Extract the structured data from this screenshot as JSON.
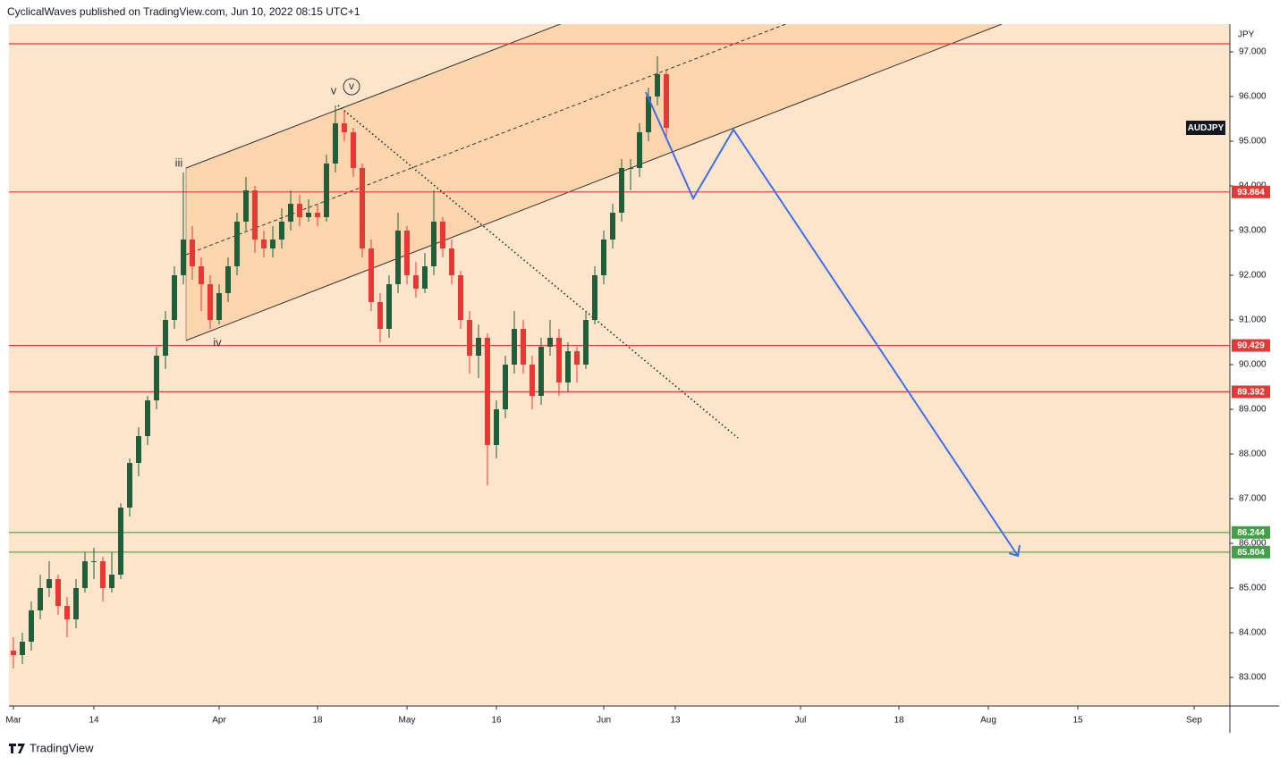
{
  "header": "CyclicalWaves published on TradingView.com, Jun 10, 2022 08:15 UTC+1",
  "footer": "TradingView",
  "chart_data": {
    "type": "candlestick",
    "symbol": "AUDJPY",
    "currency": "JPY",
    "up_color": "#1f5f3a",
    "down_color": "#e53935",
    "candles": [
      [
        83.6,
        83.9,
        83.2,
        83.5
      ],
      [
        83.5,
        84.0,
        83.3,
        83.8
      ],
      [
        83.8,
        84.7,
        83.6,
        84.5
      ],
      [
        84.5,
        85.3,
        84.3,
        85.0
      ],
      [
        85.0,
        85.6,
        84.8,
        85.2
      ],
      [
        85.2,
        85.3,
        84.4,
        84.6
      ],
      [
        84.6,
        84.8,
        83.9,
        84.3
      ],
      [
        84.3,
        85.2,
        84.1,
        85.0
      ],
      [
        85.0,
        85.8,
        84.9,
        85.6
      ],
      [
        85.6,
        85.9,
        85.2,
        85.6
      ],
      [
        85.6,
        85.7,
        84.7,
        85.0
      ],
      [
        85.0,
        85.8,
        84.9,
        85.3
      ],
      [
        85.3,
        86.9,
        85.2,
        86.8
      ],
      [
        86.8,
        87.9,
        86.6,
        87.8
      ],
      [
        87.8,
        88.6,
        87.5,
        88.4
      ],
      [
        88.4,
        89.3,
        88.2,
        89.2
      ],
      [
        89.2,
        90.4,
        89.0,
        90.2
      ],
      [
        90.2,
        91.2,
        89.9,
        91.0
      ],
      [
        91.0,
        92.2,
        90.8,
        92.0
      ],
      [
        92.0,
        94.3,
        91.8,
        92.8
      ],
      [
        92.8,
        93.1,
        91.9,
        92.2
      ],
      [
        92.2,
        92.4,
        91.2,
        91.8
      ],
      [
        91.8,
        92.0,
        90.8,
        91.0
      ],
      [
        91.0,
        91.8,
        90.9,
        91.6
      ],
      [
        91.6,
        92.4,
        91.4,
        92.2
      ],
      [
        92.2,
        93.4,
        92.0,
        93.2
      ],
      [
        93.2,
        94.2,
        93.0,
        93.9
      ],
      [
        93.9,
        94.0,
        92.5,
        92.8
      ],
      [
        92.8,
        93.0,
        92.4,
        92.6
      ],
      [
        92.6,
        93.1,
        92.4,
        92.8
      ],
      [
        92.8,
        93.5,
        92.6,
        93.2
      ],
      [
        93.2,
        93.9,
        93.0,
        93.6
      ],
      [
        93.6,
        93.8,
        93.1,
        93.3
      ],
      [
        93.3,
        93.7,
        93.2,
        93.4
      ],
      [
        93.4,
        93.6,
        93.1,
        93.3
      ],
      [
        93.3,
        94.7,
        93.2,
        94.5
      ],
      [
        94.5,
        95.8,
        94.3,
        95.4
      ],
      [
        95.4,
        95.7,
        95.0,
        95.2
      ],
      [
        95.2,
        95.3,
        94.2,
        94.4
      ],
      [
        94.4,
        94.5,
        92.4,
        92.6
      ],
      [
        92.6,
        92.8,
        91.2,
        91.4
      ],
      [
        91.4,
        91.6,
        90.5,
        90.8
      ],
      [
        90.8,
        92.0,
        90.6,
        91.8
      ],
      [
        91.8,
        93.4,
        91.6,
        93.0
      ],
      [
        93.0,
        93.1,
        91.8,
        92.0
      ],
      [
        92.0,
        92.3,
        91.5,
        91.7
      ],
      [
        91.7,
        92.5,
        91.6,
        92.2
      ],
      [
        92.2,
        93.9,
        92.0,
        93.2
      ],
      [
        93.2,
        93.3,
        92.4,
        92.6
      ],
      [
        92.6,
        92.8,
        91.8,
        92.0
      ],
      [
        92.0,
        92.1,
        90.8,
        91.0
      ],
      [
        91.0,
        91.2,
        89.8,
        90.2
      ],
      [
        90.2,
        90.9,
        89.7,
        90.6
      ],
      [
        90.6,
        90.7,
        87.3,
        88.2
      ],
      [
        88.2,
        89.2,
        87.9,
        89.0
      ],
      [
        89.0,
        90.2,
        88.8,
        90.0
      ],
      [
        90.0,
        91.2,
        89.8,
        90.8
      ],
      [
        90.8,
        91.0,
        89.8,
        90.0
      ],
      [
        90.0,
        90.2,
        89.0,
        89.3
      ],
      [
        89.3,
        90.6,
        89.1,
        90.4
      ],
      [
        90.4,
        91.0,
        90.2,
        90.6
      ],
      [
        90.6,
        90.8,
        89.3,
        89.6
      ],
      [
        89.6,
        90.5,
        89.4,
        90.3
      ],
      [
        90.3,
        90.4,
        89.6,
        90.0
      ],
      [
        90.0,
        91.2,
        89.9,
        91.0
      ],
      [
        91.0,
        92.2,
        90.9,
        92.0
      ],
      [
        92.0,
        93.0,
        91.8,
        92.8
      ],
      [
        92.8,
        93.6,
        92.6,
        93.4
      ],
      [
        93.4,
        94.6,
        93.2,
        94.4
      ],
      [
        94.4,
        94.6,
        93.9,
        94.4
      ],
      [
        94.4,
        95.4,
        94.2,
        95.2
      ],
      [
        95.2,
        96.2,
        95.0,
        96.0
      ],
      [
        96.0,
        96.9,
        95.8,
        96.5
      ],
      [
        96.5,
        96.6,
        95.1,
        95.3
      ]
    ],
    "xlim": [
      -0.5,
      136
    ],
    "xticks": [
      {
        "value": 0,
        "label": "Mar"
      },
      {
        "value": 9,
        "label": "14"
      },
      {
        "value": 23,
        "label": "Apr"
      },
      {
        "value": 34,
        "label": "18"
      },
      {
        "value": 44,
        "label": "May"
      },
      {
        "value": 54,
        "label": "16"
      },
      {
        "value": 66,
        "label": "Jun"
      },
      {
        "value": 74,
        "label": "13"
      },
      {
        "value": 88,
        "label": "Jul"
      },
      {
        "value": 99,
        "label": "18"
      },
      {
        "value": 109,
        "label": "Aug"
      },
      {
        "value": 119,
        "label": "15"
      },
      {
        "value": 132,
        "label": "Sep"
      }
    ],
    "ylim": [
      82.36,
      97.62
    ],
    "yticks": [
      {
        "value": 83,
        "label": "83.000"
      },
      {
        "value": 84,
        "label": "84.000"
      },
      {
        "value": 85,
        "label": "85.000"
      },
      {
        "value": 86,
        "label": "86.000"
      },
      {
        "value": 87,
        "label": "87.000"
      },
      {
        "value": 88,
        "label": "88.000"
      },
      {
        "value": 89,
        "label": "89.000"
      },
      {
        "value": 90,
        "label": "90.000"
      },
      {
        "value": 91,
        "label": "91.000"
      },
      {
        "value": 92,
        "label": "92.000"
      },
      {
        "value": 93,
        "label": "93.000"
      },
      {
        "value": 94,
        "label": "94.000"
      },
      {
        "value": 95,
        "label": "95.000"
      },
      {
        "value": 96,
        "label": "96.000"
      },
      {
        "value": 97,
        "label": "97.000"
      }
    ],
    "levels": [
      {
        "value": 97.18,
        "color": "#e53935"
      },
      {
        "value": 93.864,
        "label": "93.864",
        "color": "#e53935"
      },
      {
        "value": 90.429,
        "label": "90.429",
        "color": "#e53935"
      },
      {
        "value": 89.392,
        "label": "89.392",
        "color": "#e53935"
      },
      {
        "value": 86.244,
        "label": "86.244",
        "color": "#43a047"
      },
      {
        "value": 85.804,
        "label": "85.804",
        "color": "#43a047"
      }
    ],
    "channel": {
      "x": [
        19.3,
        110.5
      ],
      "upper": [
        94.4,
        101.42
      ],
      "middle": [
        92.46,
        99.48
      ],
      "lower": [
        90.54,
        97.62
      ],
      "color": "#f9cf9f"
    },
    "trendline": {
      "x": [
        36.3,
        81
      ],
      "y": [
        95.8,
        88.36
      ]
    },
    "projection": {
      "x": [
        70.7,
        76,
        80.5,
        112.3
      ],
      "y": [
        96.1,
        93.72,
        95.26,
        85.72
      ],
      "color": "#3d6ee8"
    },
    "wave_labels": [
      "iii",
      "iv",
      "v",
      "v"
    ]
  }
}
